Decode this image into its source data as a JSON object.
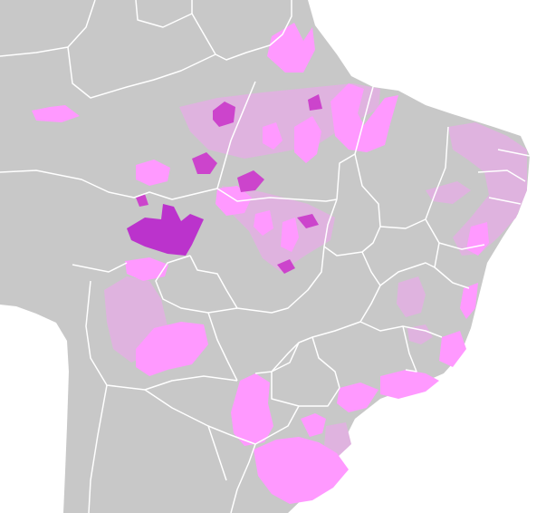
{
  "map": {
    "colors": {
      "ocean": "#ffffff",
      "land": "#c8c8c8",
      "borders": "#ffffff",
      "range_light": "#dfb3df",
      "range_medium": "#ff99ff",
      "range_dark": "#cc44cc",
      "range_darkest": "#bb33cc"
    },
    "legend": []
  }
}
